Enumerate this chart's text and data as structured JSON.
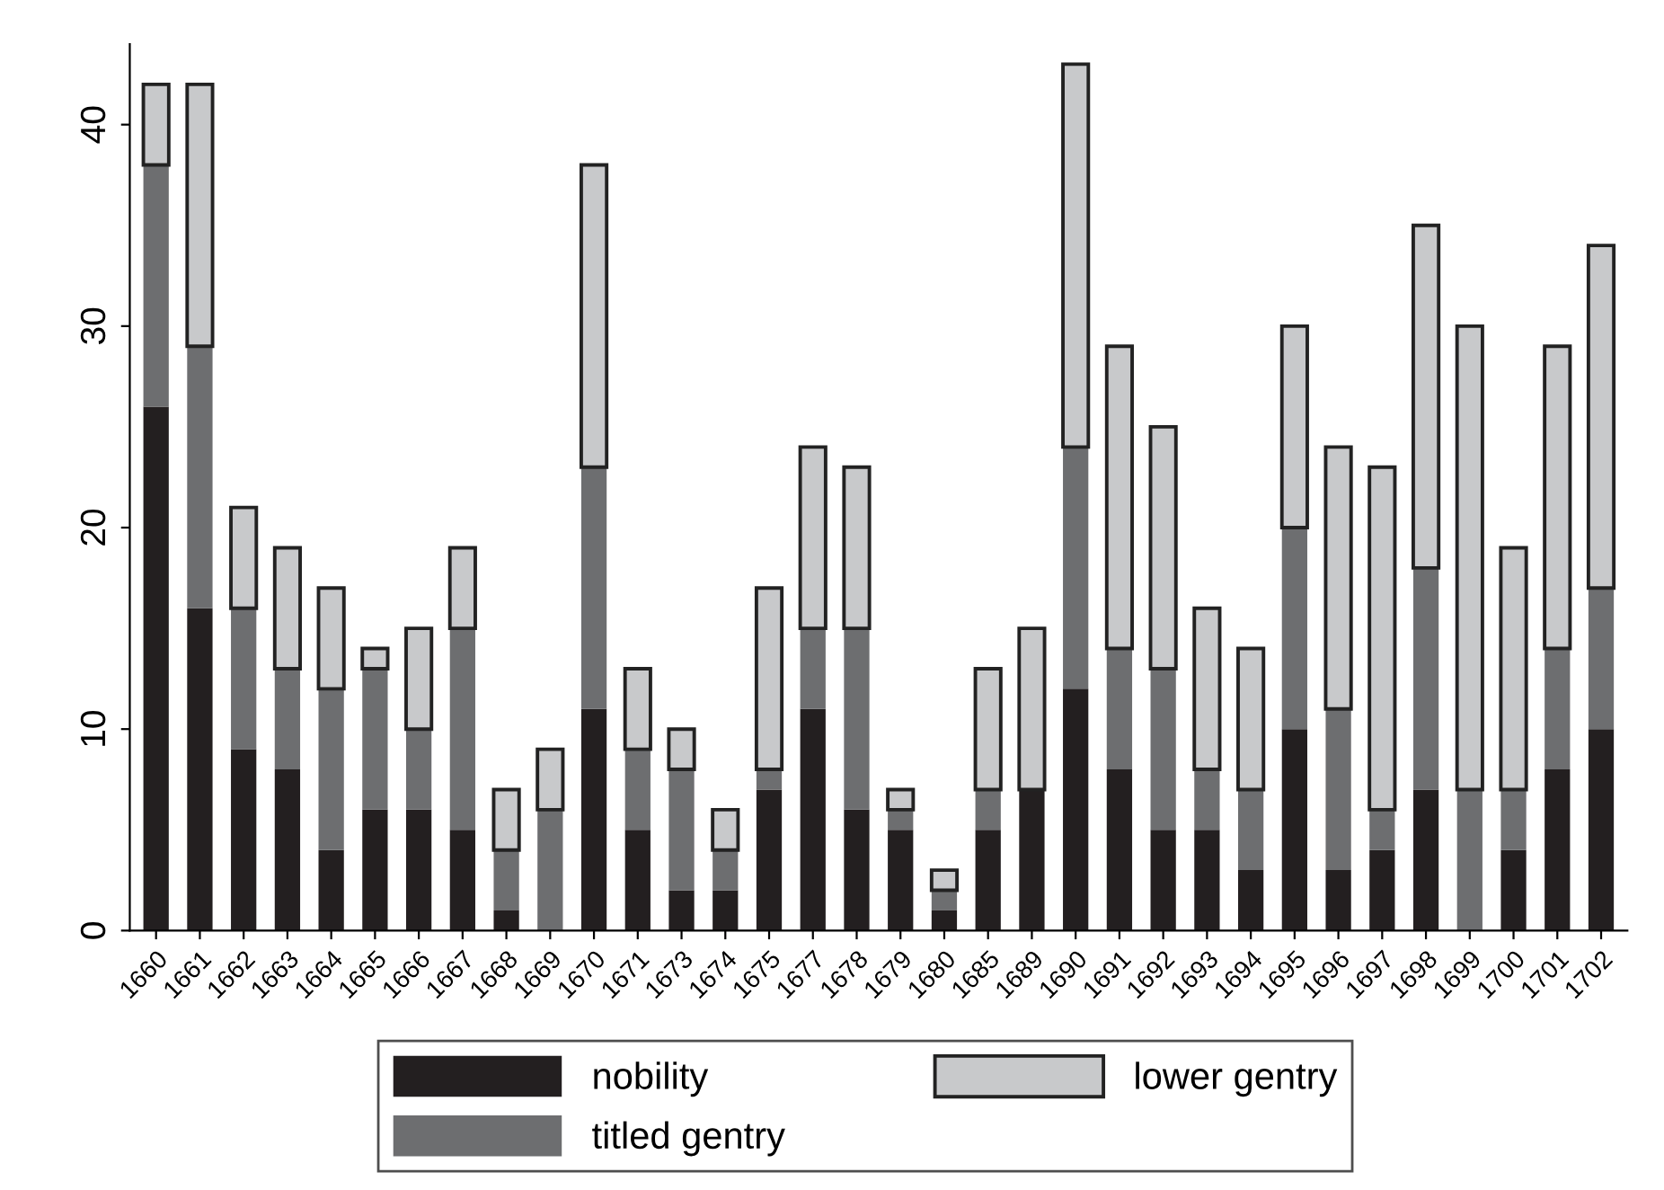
{
  "chart_data": {
    "type": "bar",
    "stacked": true,
    "categories": [
      "1660",
      "1661",
      "1662",
      "1663",
      "1664",
      "1665",
      "1666",
      "1667",
      "1668",
      "1669",
      "1670",
      "1671",
      "1673",
      "1674",
      "1675",
      "1677",
      "1678",
      "1679",
      "1680",
      "1685",
      "1689",
      "1690",
      "1691",
      "1692",
      "1693",
      "1694",
      "1695",
      "1696",
      "1697",
      "1698",
      "1699",
      "1700",
      "1701",
      "1702"
    ],
    "series": [
      {
        "name": "nobility",
        "color": "#231f20",
        "values": [
          26,
          16,
          9,
          8,
          4,
          6,
          6,
          5,
          1,
          0,
          11,
          5,
          2,
          2,
          7,
          11,
          6,
          5,
          1,
          5,
          7,
          12,
          8,
          5,
          5,
          3,
          10,
          3,
          4,
          7,
          0,
          4,
          8,
          10
        ]
      },
      {
        "name": "titled gentry",
        "color": "#6d6e70",
        "values": [
          12,
          13,
          7,
          5,
          8,
          7,
          4,
          10,
          3,
          6,
          12,
          4,
          6,
          2,
          1,
          4,
          9,
          1,
          1,
          2,
          0,
          12,
          6,
          8,
          3,
          4,
          10,
          8,
          2,
          11,
          7,
          3,
          6,
          7
        ]
      },
      {
        "name": "lower gentry",
        "color": "#c8c9cb",
        "values": [
          4,
          13,
          5,
          6,
          5,
          1,
          5,
          4,
          3,
          3,
          15,
          4,
          2,
          2,
          9,
          9,
          8,
          1,
          1,
          6,
          8,
          19,
          15,
          12,
          8,
          7,
          10,
          13,
          17,
          17,
          23,
          12,
          15,
          17
        ]
      }
    ],
    "ylim": [
      0,
      44
    ],
    "yticks": [
      0,
      10,
      20,
      30,
      40
    ],
    "grid": false,
    "legend": "bottom"
  }
}
